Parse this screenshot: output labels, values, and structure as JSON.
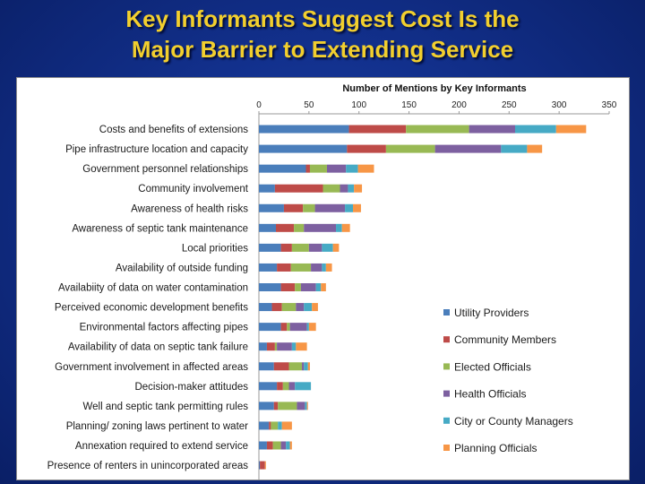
{
  "slide": {
    "title_line1": "Key Informants Suggest Cost Is the",
    "title_line2": "Major Barrier to Extending Service"
  },
  "chart_data": {
    "type": "bar",
    "orientation": "horizontal",
    "stacked": true,
    "title": "Number of Mentions by Key Informants",
    "xlim": [
      0,
      350
    ],
    "xticks": [
      0,
      50,
      100,
      150,
      200,
      250,
      300,
      350
    ],
    "grid": false,
    "legend_position": "bottom-right",
    "categories": [
      "Costs and benefits of extensions",
      "Pipe infrastructure location and capacity",
      "Government personnel relationships",
      "Community involvement",
      "Awareness of health risks",
      "Awareness of septic tank maintenance",
      "Local priorities",
      "Availability of outside funding",
      "Availabiity of data on water contamination",
      "Perceived economic development benefits",
      "Environmental factors affecting pipes",
      "Availability of data on septic tank failure",
      "Government involvement in affected areas",
      "Decision-maker attitudes",
      "Well and septic tank permitting rules",
      "Planning/ zoning laws pertinent to water",
      "Annexation required to extend service",
      "Presence of renters in unincorporated areas"
    ],
    "series": [
      {
        "name": "Utility Providers",
        "color": "#4a7ebb",
        "values": [
          90,
          88,
          47,
          16,
          25,
          17,
          22,
          18,
          22,
          13,
          22,
          8,
          15,
          18,
          15,
          10,
          8,
          1
        ]
      },
      {
        "name": "Community Members",
        "color": "#be4b48",
        "values": [
          57,
          39,
          4,
          48,
          19,
          18,
          11,
          14,
          14,
          10,
          6,
          8,
          15,
          6,
          4,
          2,
          6,
          5
        ]
      },
      {
        "name": "Elected Officials",
        "color": "#98b954",
        "values": [
          63,
          49,
          17,
          17,
          12,
          10,
          17,
          20,
          6,
          14,
          3,
          2,
          13,
          6,
          19,
          7,
          8,
          0
        ]
      },
      {
        "name": "Health Officials",
        "color": "#7d60a0",
        "values": [
          46,
          66,
          19,
          8,
          30,
          32,
          13,
          11,
          15,
          8,
          17,
          15,
          2,
          6,
          8,
          0,
          5,
          0
        ]
      },
      {
        "name": "City or County Managers",
        "color": "#46aac5",
        "values": [
          41,
          26,
          12,
          6,
          8,
          6,
          11,
          4,
          5,
          8,
          2,
          4,
          4,
          16,
          2,
          4,
          4,
          0
        ]
      },
      {
        "name": "Planning Officials",
        "color": "#f79646",
        "values": [
          30,
          15,
          16,
          8,
          8,
          8,
          6,
          6,
          5,
          6,
          7,
          11,
          2,
          0,
          1,
          10,
          2,
          1
        ]
      }
    ]
  }
}
